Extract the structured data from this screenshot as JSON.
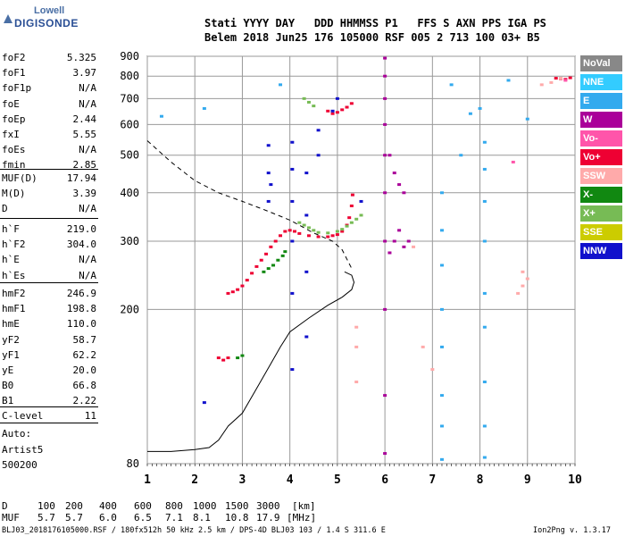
{
  "logo": {
    "line1": "Lowell",
    "line2": "DIGISONDE"
  },
  "header": {
    "labels": "Stati YYYY DAY   DDD HHMMSS P1   FFS S AXN PPS IGA PS",
    "values": "Belem 2018 Jun25 176 105000 RSF 005 2 713 100 03+ B5"
  },
  "params_group1": [
    {
      "name": "foF2",
      "value": "5.325"
    },
    {
      "name": "foF1",
      "value": "3.97"
    },
    {
      "name": "foF1p",
      "value": "N/A"
    },
    {
      "name": "foE",
      "value": "N/A"
    },
    {
      "name": "foEp",
      "value": "2.44"
    },
    {
      "name": "fxI",
      "value": "5.55"
    },
    {
      "name": "foEs",
      "value": "N/A"
    },
    {
      "name": "fmin",
      "value": "2.85"
    }
  ],
  "params_group2": [
    {
      "name": "MUF(D)",
      "value": "17.94"
    },
    {
      "name": "M(D)",
      "value": "3.39"
    },
    {
      "name": "D",
      "value": "N/A"
    }
  ],
  "params_group3": [
    {
      "name": "h`F",
      "value": "219.0"
    },
    {
      "name": "h`F2",
      "value": "304.0"
    },
    {
      "name": "h`E",
      "value": "N/A"
    },
    {
      "name": "h`Es",
      "value": "N/A"
    }
  ],
  "params_group4": [
    {
      "name": "hmF2",
      "value": "246.9"
    },
    {
      "name": "hmF1",
      "value": "198.8"
    },
    {
      "name": "hmE",
      "value": "110.0"
    },
    {
      "name": "yF2",
      "value": "58.7"
    },
    {
      "name": "yF1",
      "value": "62.2"
    },
    {
      "name": "yE",
      "value": "20.0"
    },
    {
      "name": "B0",
      "value": "66.8"
    },
    {
      "name": "B1",
      "value": "2.22"
    }
  ],
  "params_group5": [
    {
      "name": "C-level",
      "value": "11"
    }
  ],
  "autoscaling": {
    "line1": "Auto:",
    "line2": "Artist5",
    "line3": "500200"
  },
  "legend": [
    {
      "label": "NoVal",
      "bg": "#888888",
      "fg": "#ffffff"
    },
    {
      "label": "NNE",
      "bg": "#33ccff",
      "fg": "#ffffff"
    },
    {
      "label": "E",
      "bg": "#33aaee",
      "fg": "#ffffff"
    },
    {
      "label": "W",
      "bg": "#aa0099",
      "fg": "#ffffff"
    },
    {
      "label": "Vo-",
      "bg": "#ff55aa",
      "fg": "#ffffff"
    },
    {
      "label": "Vo+",
      "bg": "#ee0033",
      "fg": "#ffffff"
    },
    {
      "label": "SSW",
      "bg": "#ffaaaa",
      "fg": "#ffffff"
    },
    {
      "label": "X-",
      "bg": "#118811",
      "fg": "#ffffff"
    },
    {
      "label": "X+",
      "bg": "#77bb55",
      "fg": "#ffffff"
    },
    {
      "label": "SSE",
      "bg": "#cccc00",
      "fg": "#ffffff"
    },
    {
      "label": "NNW",
      "bg": "#1111cc",
      "fg": "#ffffff"
    }
  ],
  "muf_table": {
    "d_label": "D",
    "muf_label": "MUF",
    "d_values": [
      "100",
      "200",
      "400",
      "600",
      "800",
      "1000",
      "1500",
      "3000"
    ],
    "d_unit": "[km]",
    "muf_values": [
      "5.7",
      "5.7",
      "6.0",
      "6.5",
      "7.1",
      "8.1",
      "10.8",
      "17.9"
    ],
    "muf_unit": "[MHz]"
  },
  "footer": {
    "left": "BLJ03_2018176105000.RSF / 180fx512h 50 kHz 2.5 km / DPS-4D BLJ03 103 / 1.4 S 311.6 E",
    "right": "Ion2Png v. 1.3.17"
  },
  "chart_data": {
    "type": "scatter",
    "xlabel": "",
    "ylabel": "",
    "xlim": [
      1,
      10
    ],
    "ylim": [
      80,
      900
    ],
    "x_ticks": [
      1,
      2,
      3,
      4,
      5,
      6,
      7,
      8,
      9,
      10
    ],
    "y_ticks": [
      80,
      200,
      300,
      400,
      500,
      600,
      700,
      800,
      900
    ],
    "y_scale": "log",
    "grid": true,
    "series": [
      {
        "name": "Vo+",
        "color": "#ee0033",
        "points": [
          [
            2.7,
            220
          ],
          [
            2.8,
            222
          ],
          [
            2.9,
            225
          ],
          [
            3.0,
            230
          ],
          [
            3.1,
            238
          ],
          [
            3.2,
            248
          ],
          [
            3.3,
            258
          ],
          [
            3.4,
            268
          ],
          [
            3.5,
            278
          ],
          [
            3.6,
            290
          ],
          [
            3.7,
            300
          ],
          [
            3.8,
            310
          ],
          [
            3.9,
            318
          ],
          [
            4.0,
            320
          ],
          [
            4.1,
            318
          ],
          [
            4.2,
            314
          ],
          [
            4.4,
            310
          ],
          [
            4.6,
            308
          ],
          [
            4.8,
            308
          ],
          [
            4.9,
            310
          ],
          [
            5.0,
            312
          ],
          [
            5.1,
            318
          ],
          [
            5.2,
            330
          ],
          [
            5.25,
            345
          ],
          [
            5.3,
            370
          ],
          [
            5.32,
            395
          ],
          [
            4.8,
            650
          ],
          [
            4.9,
            640
          ],
          [
            5.0,
            645
          ],
          [
            5.1,
            655
          ],
          [
            5.2,
            665
          ],
          [
            5.3,
            680
          ],
          [
            2.5,
            150
          ],
          [
            2.6,
            148
          ],
          [
            2.7,
            150
          ],
          [
            9.6,
            790
          ],
          [
            9.7,
            788
          ],
          [
            9.8,
            785
          ],
          [
            9.9,
            792
          ]
        ]
      },
      {
        "name": "X-",
        "color": "#118811",
        "points": [
          [
            3.45,
            250
          ],
          [
            3.55,
            255
          ],
          [
            3.65,
            260
          ],
          [
            3.75,
            268
          ],
          [
            3.85,
            275
          ],
          [
            3.9,
            282
          ],
          [
            2.9,
            150
          ],
          [
            3.0,
            152
          ]
        ]
      },
      {
        "name": "X+",
        "color": "#77bb55",
        "points": [
          [
            4.2,
            335
          ],
          [
            4.3,
            330
          ],
          [
            4.4,
            325
          ],
          [
            4.5,
            320
          ],
          [
            4.6,
            316
          ],
          [
            4.8,
            315
          ],
          [
            5.0,
            318
          ],
          [
            5.1,
            322
          ],
          [
            5.2,
            328
          ],
          [
            5.3,
            335
          ],
          [
            5.4,
            342
          ],
          [
            5.5,
            350
          ],
          [
            4.3,
            700
          ],
          [
            4.4,
            685
          ],
          [
            4.5,
            670
          ]
        ]
      },
      {
        "name": "W",
        "color": "#aa0099",
        "points": [
          [
            6.0,
            85
          ],
          [
            6.0,
            120
          ],
          [
            6.0,
            200
          ],
          [
            6.0,
            300
          ],
          [
            6.0,
            400
          ],
          [
            6.0,
            500
          ],
          [
            6.0,
            600
          ],
          [
            6.0,
            700
          ],
          [
            6.0,
            800
          ],
          [
            6.0,
            890
          ],
          [
            6.1,
            280
          ],
          [
            6.1,
            500
          ],
          [
            6.2,
            300
          ],
          [
            6.2,
            450
          ],
          [
            6.3,
            320
          ],
          [
            6.3,
            420
          ],
          [
            6.4,
            290
          ],
          [
            6.4,
            400
          ],
          [
            6.5,
            300
          ]
        ]
      },
      {
        "name": "NNW",
        "color": "#1111cc",
        "points": [
          [
            3.55,
            380
          ],
          [
            3.55,
            450
          ],
          [
            3.55,
            530
          ],
          [
            3.6,
            420
          ],
          [
            4.05,
            140
          ],
          [
            4.05,
            220
          ],
          [
            4.05,
            300
          ],
          [
            4.05,
            380
          ],
          [
            4.05,
            460
          ],
          [
            4.05,
            540
          ],
          [
            4.35,
            170
          ],
          [
            4.35,
            250
          ],
          [
            4.35,
            350
          ],
          [
            4.35,
            450
          ],
          [
            4.6,
            500
          ],
          [
            4.6,
            580
          ],
          [
            4.9,
            650
          ],
          [
            5.0,
            700
          ],
          [
            5.5,
            380
          ],
          [
            2.2,
            115
          ]
        ]
      },
      {
        "name": "E",
        "color": "#33aaee",
        "points": [
          [
            7.2,
            82
          ],
          [
            7.2,
            100
          ],
          [
            7.2,
            120
          ],
          [
            7.2,
            160
          ],
          [
            7.2,
            200
          ],
          [
            7.2,
            260
          ],
          [
            7.2,
            320
          ],
          [
            7.2,
            400
          ],
          [
            8.1,
            83
          ],
          [
            8.1,
            100
          ],
          [
            8.1,
            130
          ],
          [
            8.1,
            180
          ],
          [
            8.1,
            220
          ],
          [
            8.1,
            300
          ],
          [
            8.1,
            380
          ],
          [
            8.1,
            460
          ],
          [
            8.1,
            540
          ],
          [
            7.6,
            500
          ],
          [
            7.8,
            640
          ],
          [
            8.0,
            660
          ],
          [
            7.4,
            760
          ],
          [
            8.6,
            780
          ],
          [
            9.0,
            620
          ],
          [
            3.8,
            760
          ],
          [
            1.3,
            630
          ],
          [
            2.2,
            660
          ]
        ]
      },
      {
        "name": "SSW",
        "color": "#ffaaaa",
        "points": [
          [
            5.4,
            180
          ],
          [
            5.4,
            160
          ],
          [
            5.4,
            130
          ],
          [
            6.6,
            290
          ],
          [
            6.8,
            160
          ],
          [
            7.0,
            140
          ],
          [
            8.8,
            220
          ],
          [
            8.9,
            230
          ],
          [
            8.9,
            250
          ],
          [
            9.0,
            240
          ],
          [
            9.3,
            760
          ],
          [
            9.5,
            770
          ],
          [
            9.7,
            790
          ]
        ]
      },
      {
        "name": "Vo-",
        "color": "#ff55aa",
        "points": [
          [
            8.7,
            480
          ],
          [
            9.8,
            780
          ]
        ]
      }
    ],
    "curves": [
      {
        "name": "true-height-profile",
        "style": "solid",
        "points": [
          [
            1.0,
            86
          ],
          [
            1.5,
            86
          ],
          [
            2.0,
            87
          ],
          [
            2.3,
            88
          ],
          [
            2.5,
            92
          ],
          [
            2.7,
            100
          ],
          [
            3.0,
            108
          ],
          [
            3.3,
            125
          ],
          [
            3.6,
            145
          ],
          [
            3.8,
            160
          ],
          [
            4.0,
            175
          ],
          [
            4.4,
            190
          ],
          [
            4.8,
            205
          ],
          [
            5.1,
            215
          ],
          [
            5.3,
            225
          ],
          [
            5.35,
            235
          ],
          [
            5.3,
            245
          ],
          [
            5.15,
            250
          ]
        ]
      },
      {
        "name": "extrapolated-profile",
        "style": "dashed",
        "points": [
          [
            1.0,
            545
          ],
          [
            1.5,
            480
          ],
          [
            2.0,
            430
          ],
          [
            2.5,
            400
          ],
          [
            3.0,
            380
          ],
          [
            3.5,
            360
          ],
          [
            4.0,
            340
          ],
          [
            4.5,
            315
          ],
          [
            4.9,
            300
          ],
          [
            5.1,
            285
          ],
          [
            5.3,
            255
          ]
        ]
      }
    ]
  }
}
